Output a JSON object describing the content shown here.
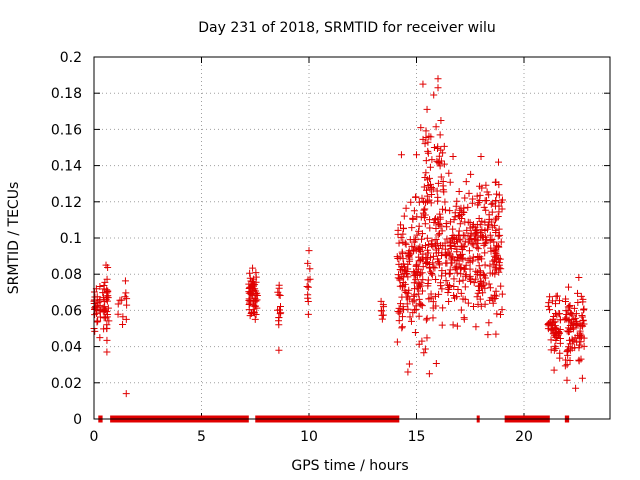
{
  "chart_data": {
    "type": "scatter",
    "title": "Day 231 of 2018, SRMTID for receiver wilu",
    "xlabel": "GPS time / hours",
    "ylabel": "SRMTID / TECUs",
    "xlim": [
      0,
      24
    ],
    "ylim": [
      0,
      0.2
    ],
    "x_ticks": [
      0,
      5,
      10,
      15,
      20
    ],
    "x_tick_labels": [
      "0",
      "5",
      "10",
      "15",
      "20"
    ],
    "y_ticks": [
      0,
      0.02,
      0.04,
      0.06,
      0.08,
      0.1,
      0.12,
      0.14,
      0.16,
      0.18,
      0.2
    ],
    "y_tick_labels": [
      "0",
      "0.02",
      "0.04",
      "0.06",
      "0.08",
      "0.1",
      "0.12",
      "0.14",
      "0.16",
      "0.18",
      "0.2"
    ],
    "grid": true,
    "marker": "+",
    "color": "#e00000",
    "zero_intervals": [
      [
        0.2,
        0.4
      ],
      [
        0.75,
        7.2
      ],
      [
        7.5,
        14.2
      ],
      [
        17.8,
        17.9
      ],
      [
        19.1,
        21.2
      ],
      [
        21.9,
        22.1
      ]
    ],
    "clusters": [
      {
        "x0": 0.0,
        "x1": 0.3,
        "n": 30,
        "ymin": 0.04,
        "ymax": 0.08
      },
      {
        "x0": 0.4,
        "x1": 0.7,
        "n": 35,
        "ymin": 0.037,
        "ymax": 0.091
      },
      {
        "x0": 1.1,
        "x1": 1.6,
        "n": 12,
        "ymin": 0.041,
        "ymax": 0.081
      },
      {
        "x0": 7.2,
        "x1": 7.6,
        "n": 60,
        "ymin": 0.048,
        "ymax": 0.087
      },
      {
        "x0": 8.5,
        "x1": 8.7,
        "n": 14,
        "ymin": 0.038,
        "ymax": 0.084
      },
      {
        "x0": 9.9,
        "x1": 10.05,
        "n": 10,
        "ymin": 0.048,
        "ymax": 0.093
      },
      {
        "x0": 13.3,
        "x1": 13.5,
        "n": 8,
        "ymin": 0.05,
        "ymax": 0.07
      },
      {
        "x0": 14.1,
        "x1": 15.3,
        "n": 160,
        "ymin": 0.026,
        "ymax": 0.146
      },
      {
        "x0": 15.3,
        "x1": 16.3,
        "n": 150,
        "ymin": 0.025,
        "ymax": 0.188
      },
      {
        "x0": 16.3,
        "x1": 17.6,
        "n": 150,
        "ymin": 0.04,
        "ymax": 0.146
      },
      {
        "x0": 17.6,
        "x1": 19.0,
        "n": 180,
        "ymin": 0.04,
        "ymax": 0.145
      },
      {
        "x0": 21.1,
        "x1": 21.7,
        "n": 60,
        "ymin": 0.027,
        "ymax": 0.074
      },
      {
        "x0": 21.9,
        "x1": 22.8,
        "n": 90,
        "ymin": 0.017,
        "ymax": 0.085
      }
    ],
    "points": [
      [
        1.5,
        0.014
      ],
      [
        15.3,
        0.185
      ],
      [
        16.0,
        0.188
      ],
      [
        16.0,
        0.183
      ],
      [
        15.8,
        0.179
      ],
      [
        16.1,
        0.157
      ],
      [
        15.2,
        0.161
      ],
      [
        16.7,
        0.145
      ],
      [
        18.0,
        0.145
      ],
      [
        14.3,
        0.146
      ],
      [
        15.0,
        0.146
      ],
      [
        19.0,
        0.121
      ],
      [
        22.4,
        0.017
      ],
      [
        10.0,
        0.093
      ],
      [
        21.4,
        0.027
      ],
      [
        15.6,
        0.025
      ],
      [
        14.6,
        0.026
      ],
      [
        8.6,
        0.038
      ],
      [
        0.6,
        0.037
      ]
    ]
  }
}
